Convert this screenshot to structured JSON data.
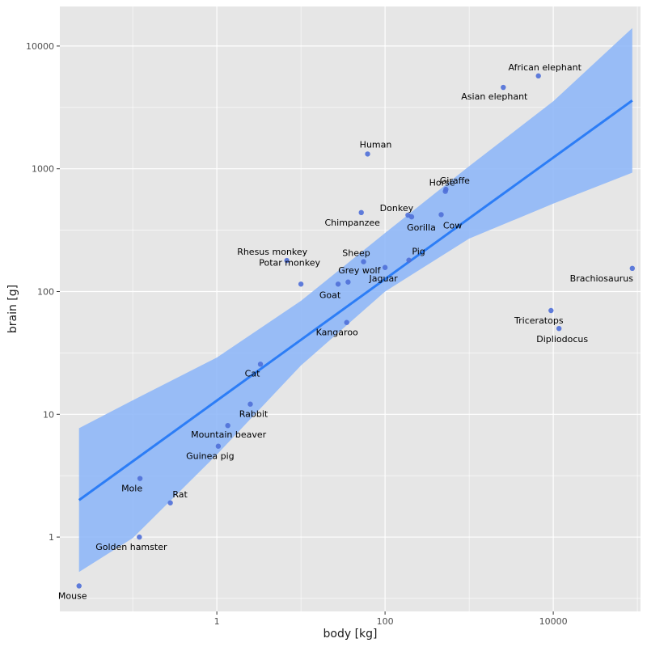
{
  "chart_data": {
    "type": "scatter",
    "title": "",
    "xlabel": "body [kg]",
    "ylabel": "brain [g]",
    "xscale": "log10",
    "yscale": "log10",
    "xlim": [
      0.0136,
      109000
    ],
    "ylim": [
      0.248,
      21000
    ],
    "x_ticks": [
      1,
      100,
      10000
    ],
    "x_tick_labels": [
      "1",
      "100",
      "10000"
    ],
    "y_ticks": [
      1,
      10,
      100,
      1000,
      10000
    ],
    "y_tick_labels": [
      "1",
      "10",
      "100",
      "1000",
      "10000"
    ],
    "grid": true,
    "legend": "none",
    "colors": {
      "panel": "#e6e6e6",
      "grid_major": "#ffffff",
      "point": "#4f6fd8",
      "fit_line": "#2c7df6",
      "ribbon": "#8ab4f8"
    },
    "points": [
      {
        "label": "Mouse",
        "x": 0.023,
        "y": 0.4
      },
      {
        "label": "Golden hamster",
        "x": 0.12,
        "y": 1
      },
      {
        "label": "Mole",
        "x": 0.122,
        "y": 3
      },
      {
        "label": "Rat",
        "x": 0.28,
        "y": 1.9
      },
      {
        "label": "Guinea pig",
        "x": 1.04,
        "y": 5.5
      },
      {
        "label": "Mountain beaver",
        "x": 1.35,
        "y": 8.1
      },
      {
        "label": "Rabbit",
        "x": 2.5,
        "y": 12.1
      },
      {
        "label": "Cat",
        "x": 3.3,
        "y": 25.6
      },
      {
        "label": "Rhesus monkey",
        "x": 6.8,
        "y": 179
      },
      {
        "label": "Potar monkey",
        "x": 10,
        "y": 115
      },
      {
        "label": "Goat",
        "x": 27.66,
        "y": 115
      },
      {
        "label": "Kangaroo",
        "x": 35,
        "y": 56
      },
      {
        "label": "Grey wolf",
        "x": 36.33,
        "y": 119.5
      },
      {
        "label": "Chimpanzee",
        "x": 52.16,
        "y": 440
      },
      {
        "label": "Sheep",
        "x": 55.5,
        "y": 175
      },
      {
        "label": "Human",
        "x": 62,
        "y": 1320
      },
      {
        "label": "Jaguar",
        "x": 100,
        "y": 157
      },
      {
        "label": "Pig",
        "x": 192,
        "y": 180
      },
      {
        "label": "Donkey",
        "x": 187.1,
        "y": 419
      },
      {
        "label": "Gorilla",
        "x": 207,
        "y": 406
      },
      {
        "label": "Cow",
        "x": 465,
        "y": 423
      },
      {
        "label": "Horse",
        "x": 521,
        "y": 655
      },
      {
        "label": "Giraffe",
        "x": 529,
        "y": 680
      },
      {
        "label": "Asian elephant",
        "x": 2547,
        "y": 4603
      },
      {
        "label": "African elephant",
        "x": 6654,
        "y": 5712
      },
      {
        "label": "Triceratops",
        "x": 9400,
        "y": 70
      },
      {
        "label": "Dipliodocus",
        "x": 11700,
        "y": 50
      },
      {
        "label": "Brachiosaurus",
        "x": 87000,
        "y": 154.5
      }
    ],
    "fit": {
      "x": [
        0.023,
        87000
      ],
      "y": [
        2.0,
        3600
      ]
    },
    "ribbon": {
      "x": [
        0.023,
        0.1,
        1,
        10,
        100,
        1000,
        10000,
        87000
      ],
      "upper": [
        7.7,
        13,
        29,
        84,
        300,
        1050,
        3550,
        14000
      ],
      "lower": [
        0.52,
        0.98,
        4.7,
        25,
        100,
        270,
        520,
        930
      ]
    }
  }
}
